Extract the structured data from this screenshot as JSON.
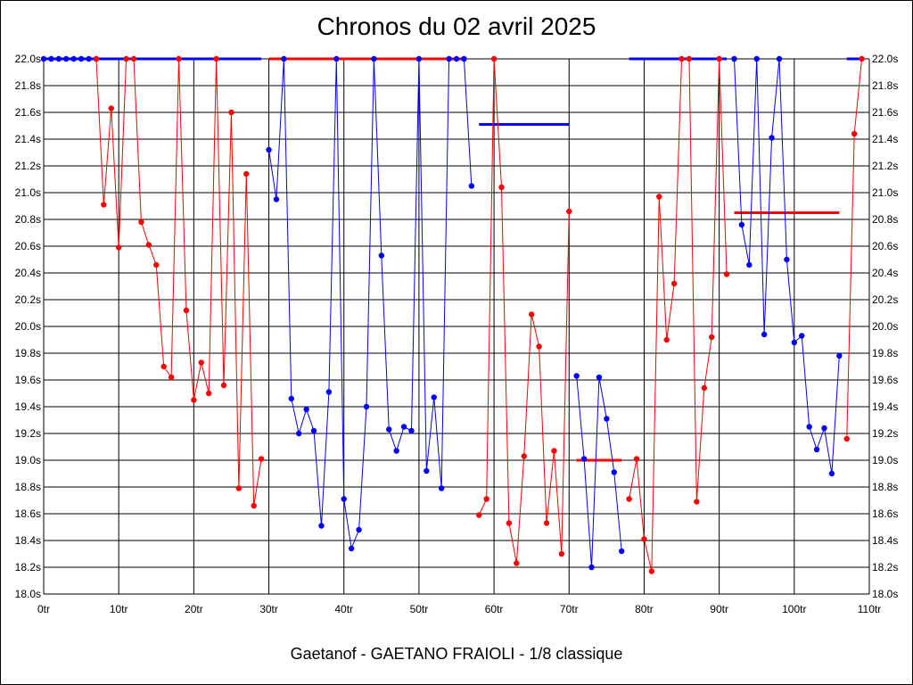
{
  "title": "Chronos du 02 avril 2025",
  "footer": "Gaetanof - GAETANO FRAIOLI - 1/8 classique",
  "chart_data": {
    "type": "line",
    "xlim": [
      0,
      110
    ],
    "ylim": [
      18.0,
      22.0
    ],
    "grid": true,
    "x_tick_values": [
      0,
      10,
      20,
      30,
      40,
      50,
      60,
      70,
      80,
      90,
      100,
      110
    ],
    "x_tick_labels": [
      "0tr",
      "10tr",
      "20tr",
      "30tr",
      "40tr",
      "50tr",
      "60tr",
      "70tr",
      "80tr",
      "90tr",
      "100tr",
      "110tr"
    ],
    "y_tick_values": [
      18.0,
      18.2,
      18.4,
      18.6,
      18.8,
      19.0,
      19.2,
      19.4,
      19.6,
      19.8,
      20.0,
      20.2,
      20.4,
      20.6,
      20.8,
      21.0,
      21.2,
      21.4,
      21.6,
      21.8,
      22.0
    ],
    "y_tick_labels": [
      "18.0s",
      "18.2s",
      "18.4s",
      "18.6s",
      "18.8s",
      "19.0s",
      "19.2s",
      "19.4s",
      "19.6s",
      "19.8s",
      "20.0s",
      "20.2s",
      "20.4s",
      "20.6s",
      "20.8s",
      "21.0s",
      "21.2s",
      "21.4s",
      "21.6s",
      "21.8s",
      "22.0s"
    ],
    "series": [
      {
        "color": "#0000ff",
        "points": [
          [
            0,
            22.0
          ],
          [
            1,
            22.0
          ],
          [
            2,
            22.0
          ],
          [
            3,
            22.0
          ],
          [
            4,
            22.0
          ],
          [
            5,
            22.0
          ],
          [
            6,
            22.0
          ],
          [
            7,
            22.0
          ]
        ]
      },
      {
        "color": "#ff0000",
        "points": [
          [
            7,
            22.0
          ],
          [
            8,
            20.91
          ],
          [
            9,
            21.63
          ],
          [
            10,
            20.59
          ],
          [
            11,
            22.0
          ],
          [
            12,
            22.0
          ],
          [
            13,
            20.78
          ],
          [
            14,
            20.61
          ],
          [
            15,
            20.46
          ],
          [
            16,
            19.7
          ],
          [
            17,
            19.62
          ],
          [
            18,
            22.0
          ],
          [
            19,
            20.12
          ],
          [
            20,
            19.45
          ],
          [
            21,
            19.73
          ],
          [
            22,
            19.5
          ],
          [
            23,
            22.0
          ],
          [
            24,
            19.56
          ],
          [
            25,
            21.6
          ],
          [
            26,
            18.79
          ],
          [
            27,
            21.14
          ],
          [
            28,
            18.66
          ],
          [
            29,
            19.01
          ]
        ]
      },
      {
        "color": "#0000ff",
        "points": [
          [
            30,
            21.32
          ],
          [
            31,
            20.95
          ],
          [
            32,
            22.0
          ],
          [
            33,
            19.46
          ],
          [
            34,
            19.2
          ],
          [
            35,
            19.38
          ],
          [
            36,
            19.22
          ],
          [
            37,
            18.51
          ],
          [
            38,
            19.51
          ],
          [
            39,
            22.0
          ],
          [
            40,
            18.71
          ],
          [
            41,
            18.34
          ],
          [
            42,
            18.48
          ],
          [
            43,
            19.4
          ],
          [
            44,
            22.0
          ],
          [
            45,
            20.53
          ],
          [
            46,
            19.23
          ],
          [
            47,
            19.07
          ],
          [
            48,
            19.25
          ],
          [
            49,
            19.22
          ],
          [
            50,
            22.0
          ],
          [
            51,
            18.92
          ],
          [
            52,
            19.47
          ],
          [
            53,
            18.79
          ],
          [
            54,
            22.0
          ],
          [
            55,
            22.0
          ],
          [
            56,
            22.0
          ],
          [
            57,
            21.05
          ]
        ]
      },
      {
        "color": "#ff0000",
        "points": [
          [
            58,
            18.59
          ],
          [
            59,
            18.71
          ],
          [
            60,
            22.0
          ],
          [
            61,
            21.04
          ],
          [
            62,
            18.53
          ],
          [
            63,
            18.23
          ],
          [
            64,
            19.03
          ],
          [
            65,
            20.09
          ],
          [
            66,
            19.85
          ],
          [
            67,
            18.53
          ],
          [
            68,
            19.07
          ],
          [
            69,
            18.3
          ],
          [
            70,
            20.86
          ]
        ]
      },
      {
        "color": "#0000ff",
        "points": [
          [
            71,
            19.63
          ],
          [
            72,
            19.01
          ],
          [
            73,
            18.2
          ],
          [
            74,
            19.62
          ],
          [
            75,
            19.31
          ],
          [
            76,
            18.91
          ],
          [
            77,
            18.32
          ]
        ]
      },
      {
        "color": "#ff0000",
        "points": [
          [
            78,
            18.71
          ],
          [
            79,
            19.01
          ],
          [
            80,
            18.41
          ],
          [
            81,
            18.17
          ],
          [
            82,
            20.97
          ],
          [
            83,
            19.9
          ],
          [
            84,
            20.32
          ],
          [
            85,
            22.0
          ],
          [
            86,
            22.0
          ],
          [
            87,
            18.69
          ],
          [
            88,
            19.54
          ],
          [
            89,
            19.92
          ],
          [
            90,
            22.0
          ],
          [
            91,
            20.39
          ]
        ]
      },
      {
        "color": "#0000ff",
        "points": [
          [
            92,
            22.0
          ],
          [
            93,
            20.76
          ],
          [
            94,
            20.46
          ],
          [
            95,
            22.0
          ],
          [
            96,
            19.94
          ],
          [
            97,
            21.41
          ],
          [
            98,
            22.0
          ],
          [
            99,
            20.5
          ],
          [
            100,
            19.88
          ],
          [
            101,
            19.93
          ],
          [
            102,
            19.25
          ],
          [
            103,
            19.08
          ],
          [
            104,
            19.24
          ],
          [
            105,
            18.9
          ],
          [
            106,
            19.78
          ]
        ]
      },
      {
        "color": "#ff0000",
        "points": [
          [
            107,
            19.16
          ],
          [
            108,
            21.44
          ],
          [
            109,
            22.0
          ]
        ]
      }
    ],
    "average_lines": [
      {
        "color": "#0000ff",
        "x": [
          0,
          29
        ],
        "y": 22.0
      },
      {
        "color": "#ff0000",
        "x": [
          30,
          56
        ],
        "y": 22.0
      },
      {
        "color": "#0000ff",
        "x": [
          58,
          70
        ],
        "y": 21.51
      },
      {
        "color": "#ff0000",
        "x": [
          71,
          77
        ],
        "y": 19.0
      },
      {
        "color": "#0000ff",
        "x": [
          78,
          91
        ],
        "y": 22.0
      },
      {
        "color": "#ff0000",
        "x": [
          92,
          106
        ],
        "y": 20.85
      },
      {
        "color": "#0000ff",
        "x": [
          107,
          109
        ],
        "y": 22.0
      }
    ]
  }
}
